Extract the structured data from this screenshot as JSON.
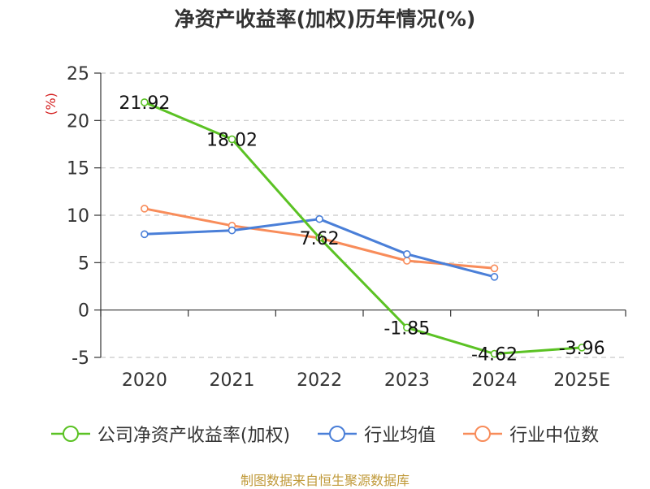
{
  "chart_data": {
    "type": "line",
    "title": "净资产收益率(加权)历年情况(%)",
    "ylabel": "(%)",
    "xlabel": "",
    "categories": [
      "2020",
      "2021",
      "2022",
      "2023",
      "2024",
      "2025E"
    ],
    "ylim": [
      -5,
      25
    ],
    "yticks": [
      25,
      20,
      15,
      10,
      5,
      0,
      -5
    ],
    "grid": true,
    "legend_position": "bottom",
    "series": [
      {
        "name": "公司净资产收益率(加权)",
        "color": "#5bc224",
        "values": [
          21.92,
          18.02,
          7.62,
          -1.85,
          -4.62,
          -3.96
        ],
        "labels": [
          "21.92",
          "18.02",
          "7.62",
          "-1.85",
          "-4.62",
          "-3.96"
        ]
      },
      {
        "name": "行业均值",
        "color": "#4a7fd8",
        "values": [
          8.0,
          8.4,
          9.6,
          5.9,
          3.5,
          null
        ]
      },
      {
        "name": "行业中位数",
        "color": "#f88c5a",
        "values": [
          10.7,
          8.9,
          7.6,
          5.2,
          4.4,
          null
        ]
      }
    ]
  },
  "source": "制图数据来自恒生聚源数据库"
}
